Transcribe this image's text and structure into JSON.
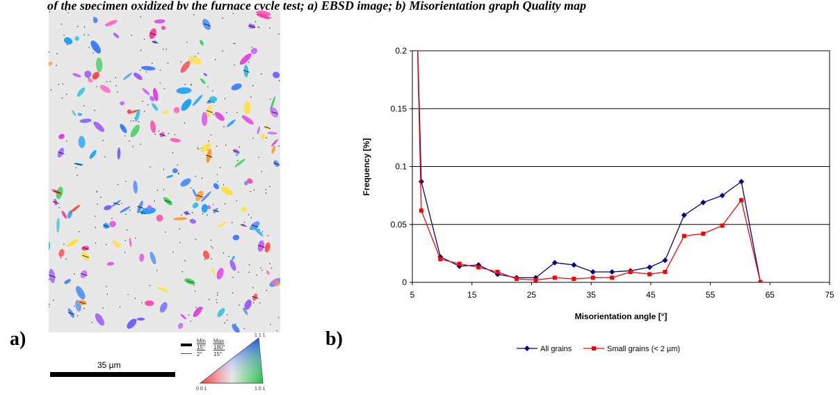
{
  "caption": "of the specimen oxidized by the furnace cycle test; a) EBSD image; b) Misorientation graph Quality map",
  "panel_a_label": "a)",
  "panel_b_label": "b)",
  "map_legend": {
    "min_header": "Min",
    "max_header": "Max",
    "row1_min": "15°",
    "row1_max": "180°",
    "row2_min": "2°",
    "row2_max": "15°",
    "triangle_top": "1 1 1",
    "triangle_left": "0 0 1",
    "triangle_right": "1 0 1"
  },
  "scalebar_label": "35 µm",
  "chart_data": {
    "type": "line",
    "xlabel": "Misorientation angle [°]",
    "ylabel": "Frequency [%]",
    "xlim": [
      5,
      75
    ],
    "ylim": [
      0,
      0.2
    ],
    "xticks": [
      "5",
      "15",
      "25",
      "35",
      "45",
      "55",
      "65",
      "75"
    ],
    "yticks": [
      "0",
      "0.05",
      "0.1",
      "0.15",
      "0.2"
    ],
    "grid": "horizontal",
    "legend_position": "bottom",
    "series": [
      {
        "name": "All grains",
        "color": "#000080",
        "marker": "diamond",
        "x": [
          6.5,
          9.7,
          12.9,
          16.1,
          19.3,
          22.5,
          25.7,
          28.9,
          32.1,
          35.3,
          38.5,
          41.6,
          44.8,
          47.4,
          50.6,
          53.8,
          57.0,
          60.2,
          63.4
        ],
        "y": [
          0.087,
          0.022,
          0.014,
          0.015,
          0.007,
          0.004,
          0.004,
          0.017,
          0.015,
          0.009,
          0.009,
          0.01,
          0.013,
          0.019,
          0.058,
          0.069,
          0.075,
          0.087,
          0.0
        ]
      },
      {
        "name": "Small grains (< 2 µm)",
        "color": "#ff0000",
        "marker": "square",
        "x": [
          6.5,
          9.7,
          12.9,
          16.1,
          19.3,
          22.5,
          25.7,
          28.9,
          32.1,
          35.3,
          38.5,
          41.6,
          44.8,
          47.4,
          50.6,
          53.8,
          57.0,
          60.2,
          63.4
        ],
        "y": [
          0.062,
          0.02,
          0.016,
          0.013,
          0.009,
          0.003,
          0.002,
          0.004,
          0.003,
          0.004,
          0.004,
          0.009,
          0.007,
          0.009,
          0.04,
          0.042,
          0.049,
          0.071,
          0.0
        ]
      }
    ]
  }
}
